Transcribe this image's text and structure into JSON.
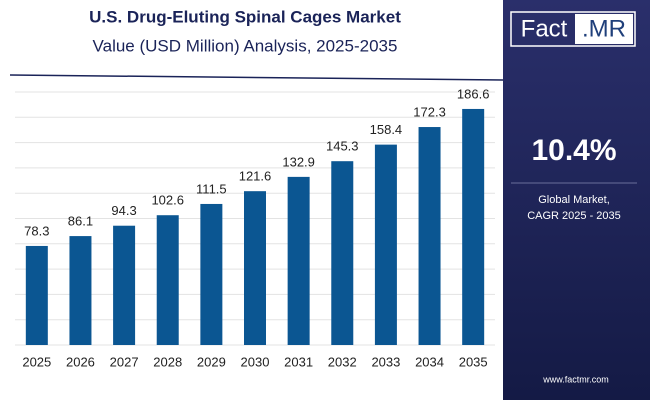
{
  "chart_data": {
    "type": "bar",
    "title": "U.S. Drug-Eluting Spinal Cages Market",
    "subtitle": "Value (USD Million) Analysis, 2025-2035",
    "categories": [
      "2025",
      "2026",
      "2027",
      "2028",
      "2029",
      "2030",
      "2031",
      "2032",
      "2033",
      "2034",
      "2035"
    ],
    "values": [
      78.3,
      86.1,
      94.3,
      102.6,
      111.5,
      121.6,
      132.9,
      145.3,
      158.4,
      172.3,
      186.6
    ],
    "color": "#0b5692",
    "ylim": [
      0,
      200
    ],
    "yticks": [
      0,
      20,
      40,
      60,
      80,
      100,
      120,
      140,
      160,
      180,
      200
    ],
    "show_ytick_labels": false,
    "grid": true
  },
  "sidebar": {
    "logo_main": "Fact",
    "logo_suffix": ".MR",
    "cagr": "10.4%",
    "cagr_label_1": "Global Market,",
    "cagr_label_2": "CAGR 2025 - 2035",
    "website": "www.factmr.com"
  }
}
